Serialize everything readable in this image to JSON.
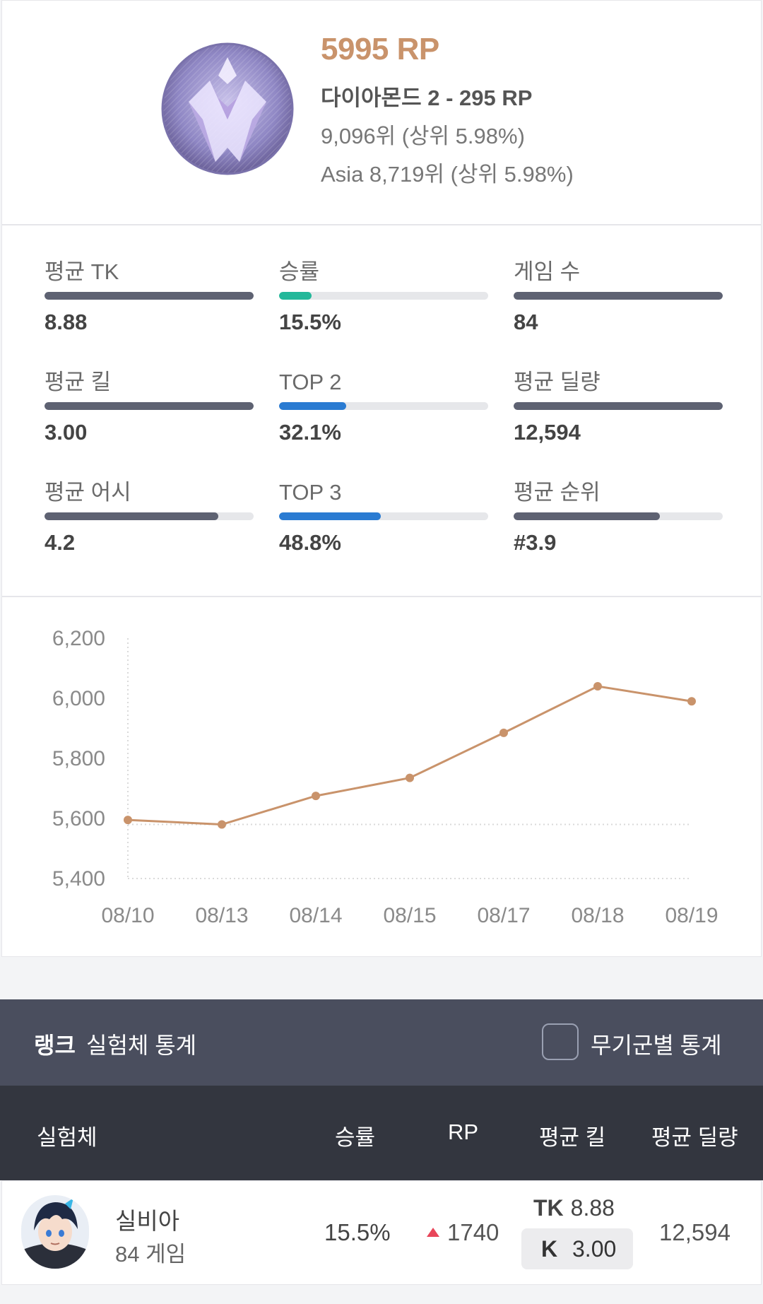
{
  "rank": {
    "rp": "5995 RP",
    "tier": "다이아몬드 2 - 295 RP",
    "global_rank": "9,096위 (상위 5.98%)",
    "region_rank": "Asia 8,719위 (상위 5.98%)",
    "emblem_icon": "diamond-tier-emblem-icon"
  },
  "stats": [
    {
      "label": "평균 TK",
      "value": "8.88",
      "fill": 1.0,
      "color": "#5e6272"
    },
    {
      "label": "승률",
      "value": "15.5%",
      "fill": 0.155,
      "color": "#23b89a"
    },
    {
      "label": "게임 수",
      "value": "84",
      "fill": 1.0,
      "color": "#5e6272"
    },
    {
      "label": "평균 킬",
      "value": "3.00",
      "fill": 1.0,
      "color": "#5e6272"
    },
    {
      "label": "TOP 2",
      "value": "32.1%",
      "fill": 0.321,
      "color": "#2a7bd2"
    },
    {
      "label": "평균 딜량",
      "value": "12,594",
      "fill": 1.0,
      "color": "#5e6272"
    },
    {
      "label": "평균 어시",
      "value": "4.2",
      "fill": 0.83,
      "color": "#5e6272"
    },
    {
      "label": "TOP 3",
      "value": "48.8%",
      "fill": 0.488,
      "color": "#2a7bd2"
    },
    {
      "label": "평균 순위",
      "value": "#3.9",
      "fill": 0.7,
      "color": "#5e6272"
    }
  ],
  "chart_data": {
    "type": "line",
    "x": [
      "08/10",
      "08/13",
      "08/14",
      "08/15",
      "08/17",
      "08/18",
      "08/19"
    ],
    "series": [
      {
        "values": [
          5595,
          5580,
          5675,
          5735,
          5885,
          6040,
          5990
        ],
        "color": "#c9936b"
      }
    ],
    "y_ticks": [
      "6,200",
      "6,000",
      "5,800",
      "5,600",
      "5,400"
    ],
    "ylim": [
      5400,
      6200
    ],
    "reference_line": 5580,
    "grid": false
  },
  "table": {
    "title_bold": "랭크",
    "title_rest": "실험체 통계",
    "checkbox_label": "무기군별 통계",
    "checkbox_checked": false,
    "headers": {
      "character": "실험체",
      "winrate": "승률",
      "rp": "RP",
      "avg_kill": "평균 킬",
      "avg_damage": "평균 딜량"
    },
    "rows": [
      {
        "name": "실비아",
        "games": "84 게임",
        "winrate": "15.5%",
        "rp": "1740",
        "rp_trend": "up",
        "tk_label": "TK",
        "tk_value": "8.88",
        "k_label": "K",
        "k_value": "3.00",
        "avg_damage": "12,594",
        "avatar_icon": "character-avatar-icon"
      }
    ]
  }
}
